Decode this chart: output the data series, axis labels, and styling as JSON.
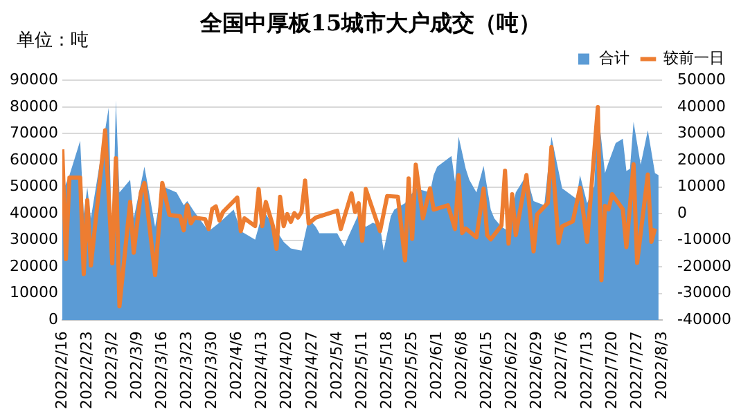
{
  "chart_data": {
    "type": "area",
    "title": "全国中厚板15城市大户成交（吨）",
    "ylabel": "单位：吨",
    "xlim": [
      "2022-02-16",
      "2022-08-03"
    ],
    "xticks": [
      {
        "value": "2022-02-16",
        "label": "2022/2/16"
      },
      {
        "value": "2022-02-23",
        "label": "2022/2/23"
      },
      {
        "value": "2022-03-02",
        "label": "2022/3/2"
      },
      {
        "value": "2022-03-09",
        "label": "2022/3/9"
      },
      {
        "value": "2022-03-16",
        "label": "2022/3/16"
      },
      {
        "value": "2022-03-23",
        "label": "2022/3/23"
      },
      {
        "value": "2022-03-30",
        "label": "2022/3/30"
      },
      {
        "value": "2022-04-06",
        "label": "2022/4/6"
      },
      {
        "value": "2022-04-13",
        "label": "2022/4/13"
      },
      {
        "value": "2022-04-20",
        "label": "2022/4/20"
      },
      {
        "value": "2022-04-27",
        "label": "2022/4/27"
      },
      {
        "value": "2022-05-04",
        "label": "2022/5/4"
      },
      {
        "value": "2022-05-11",
        "label": "2022/5/11"
      },
      {
        "value": "2022-05-18",
        "label": "2022/5/18"
      },
      {
        "value": "2022-05-25",
        "label": "2022/5/25"
      },
      {
        "value": "2022-06-01",
        "label": "2022/6/1"
      },
      {
        "value": "2022-06-08",
        "label": "2022/6/8"
      },
      {
        "value": "2022-06-15",
        "label": "2022/6/15"
      },
      {
        "value": "2022-06-22",
        "label": "2022/6/22"
      },
      {
        "value": "2022-06-29",
        "label": "2022/6/29"
      },
      {
        "value": "2022-07-06",
        "label": "2022/7/6"
      },
      {
        "value": "2022-07-13",
        "label": "2022/7/13"
      },
      {
        "value": "2022-07-20",
        "label": "2022/7/20"
      },
      {
        "value": "2022-07-27",
        "label": "2022/7/27"
      },
      {
        "value": "2022-08-03",
        "label": "2022/8/3"
      }
    ],
    "ylim": [
      0,
      90000
    ],
    "yticks": [
      0,
      10000,
      20000,
      30000,
      40000,
      50000,
      60000,
      70000,
      80000,
      90000
    ],
    "y2lim": [
      -40000,
      50000
    ],
    "y2ticks": [
      -40000,
      -30000,
      -20000,
      -10000,
      0,
      10000,
      20000,
      30000,
      40000,
      50000
    ],
    "grid": "y",
    "legend": "top right",
    "series": [
      {
        "name": "合计",
        "color": "#5b9bd5",
        "x": [
          "2022-02-16",
          "2022-02-18",
          "2022-02-21",
          "2022-02-22",
          "2022-02-23",
          "2022-02-24",
          "2022-03-01",
          "2022-03-02",
          "2022-03-03",
          "2022-03-04",
          "2022-03-07",
          "2022-03-08",
          "2022-03-11",
          "2022-03-14",
          "2022-03-16",
          "2022-03-20",
          "2022-03-22",
          "2022-03-23",
          "2022-03-25",
          "2022-03-29",
          "2022-04-01",
          "2022-04-05",
          "2022-04-07",
          "2022-04-11",
          "2022-04-13",
          "2022-04-14",
          "2022-04-19",
          "2022-04-21",
          "2022-04-24",
          "2022-04-26",
          "2022-04-28",
          "2022-04-29",
          "2022-05-04",
          "2022-05-06",
          "2022-05-07",
          "2022-05-10",
          "2022-05-12",
          "2022-05-14",
          "2022-05-16",
          "2022-05-17",
          "2022-05-19",
          "2022-05-20",
          "2022-05-23",
          "2022-05-26",
          "2022-05-30",
          "2022-05-31",
          "2022-06-01",
          "2022-06-05",
          "2022-06-06",
          "2022-06-07",
          "2022-06-09",
          "2022-06-10",
          "2022-06-12",
          "2022-06-14",
          "2022-06-16",
          "2022-06-17",
          "2022-06-19",
          "2022-06-21",
          "2022-06-23",
          "2022-06-26",
          "2022-06-28",
          "2022-07-01",
          "2022-07-03",
          "2022-07-06",
          "2022-07-10",
          "2022-07-11",
          "2022-07-13",
          "2022-07-15",
          "2022-07-16",
          "2022-07-18",
          "2022-07-19",
          "2022-07-21",
          "2022-07-23",
          "2022-07-24",
          "2022-07-25",
          "2022-07-26",
          "2022-07-28",
          "2022-07-30",
          "2022-08-01",
          "2022-08-02"
        ],
        "values": [
          47900,
          54400,
          67300,
          39800,
          49800,
          38200,
          79800,
          22100,
          82600,
          47900,
          52700,
          38200,
          57600,
          35000,
          50300,
          47900,
          43100,
          44700,
          40600,
          33400,
          36600,
          41500,
          33400,
          30200,
          39800,
          39800,
          29400,
          26900,
          26100,
          38200,
          35000,
          32600,
          32600,
          27700,
          31000,
          39800,
          35000,
          36600,
          35300,
          26100,
          39000,
          41500,
          43900,
          49500,
          47900,
          54400,
          57600,
          61600,
          51900,
          68900,
          56800,
          52700,
          47900,
          57900,
          41500,
          38200,
          35000,
          33400,
          47900,
          54400,
          44700,
          43100,
          68900,
          49500,
          45500,
          54400,
          43900,
          50300,
          79400,
          55200,
          59200,
          66500,
          68100,
          56000,
          56800,
          74500,
          58400,
          71300,
          55200,
          54400
        ]
      },
      {
        "name": "较前一日",
        "type": "line",
        "axis": "y2",
        "color": "#ed7d31",
        "x": [
          "2022-02-16",
          "2022-02-17",
          "2022-02-18",
          "2022-02-21",
          "2022-02-22",
          "2022-02-23",
          "2022-02-24",
          "2022-02-28",
          "2022-03-02",
          "2022-03-03",
          "2022-03-04",
          "2022-03-07",
          "2022-03-08",
          "2022-03-10",
          "2022-03-11",
          "2022-03-14",
          "2022-03-16",
          "2022-03-18",
          "2022-03-21",
          "2022-03-22",
          "2022-03-23",
          "2022-03-24",
          "2022-03-25",
          "2022-03-28",
          "2022-03-29",
          "2022-03-30",
          "2022-03-31",
          "2022-04-01",
          "2022-04-02",
          "2022-04-06",
          "2022-04-07",
          "2022-04-08",
          "2022-04-11",
          "2022-04-12",
          "2022-04-13",
          "2022-04-14",
          "2022-04-16",
          "2022-04-17",
          "2022-04-18",
          "2022-04-19",
          "2022-04-20",
          "2022-04-21",
          "2022-04-22",
          "2022-04-23",
          "2022-04-24",
          "2022-04-25",
          "2022-04-26",
          "2022-04-28",
          "2022-05-04",
          "2022-05-05",
          "2022-05-08",
          "2022-05-09",
          "2022-05-10",
          "2022-05-11",
          "2022-05-12",
          "2022-05-16",
          "2022-05-18",
          "2022-05-21",
          "2022-05-23",
          "2022-05-24",
          "2022-05-25",
          "2022-05-26",
          "2022-05-28",
          "2022-05-30",
          "2022-05-31",
          "2022-06-04",
          "2022-06-06",
          "2022-06-07",
          "2022-06-08",
          "2022-06-09",
          "2022-06-12",
          "2022-06-14",
          "2022-06-15",
          "2022-06-16",
          "2022-06-19",
          "2022-06-20",
          "2022-06-21",
          "2022-06-22",
          "2022-06-23",
          "2022-06-26",
          "2022-06-28",
          "2022-06-29",
          "2022-07-02",
          "2022-07-03",
          "2022-07-05",
          "2022-07-06",
          "2022-07-09",
          "2022-07-11",
          "2022-07-13",
          "2022-07-16",
          "2022-07-17",
          "2022-07-18",
          "2022-07-19",
          "2022-07-20",
          "2022-07-23",
          "2022-07-24",
          "2022-07-26",
          "2022-07-27",
          "2022-07-30",
          "2022-07-31",
          "2022-08-01"
        ],
        "values": [
          24100,
          -17100,
          13500,
          13500,
          -22700,
          5000,
          -19500,
          31300,
          -18700,
          20800,
          -34800,
          4400,
          -14700,
          7900,
          11500,
          -23100,
          11500,
          -500,
          -1000,
          -6300,
          3100,
          -3700,
          -1500,
          -2100,
          -5800,
          1800,
          2700,
          -2600,
          600,
          6000,
          -6600,
          -1800,
          -4700,
          9200,
          -4700,
          4400,
          -4700,
          -13200,
          6300,
          -4700,
          -200,
          -3100,
          200,
          -1500,
          600,
          12400,
          -3700,
          -1500,
          1100,
          -5800,
          7600,
          600,
          3900,
          -10200,
          9200,
          -6600,
          6600,
          6300,
          -17600,
          13200,
          -9500,
          18400,
          -1800,
          9500,
          1500,
          3100,
          -5800,
          14400,
          -7300,
          -5600,
          -8900,
          9400,
          -8100,
          -9700,
          -4500,
          16100,
          -11300,
          7300,
          -8100,
          14500,
          -14200,
          -300,
          4000,
          25000,
          -11000,
          -4800,
          -2900,
          9700,
          -10600,
          40000,
          -25000,
          2900,
          1600,
          7300,
          1600,
          -12600,
          18500,
          -18500,
          14700,
          -10600,
          -5600
        ]
      }
    ]
  }
}
